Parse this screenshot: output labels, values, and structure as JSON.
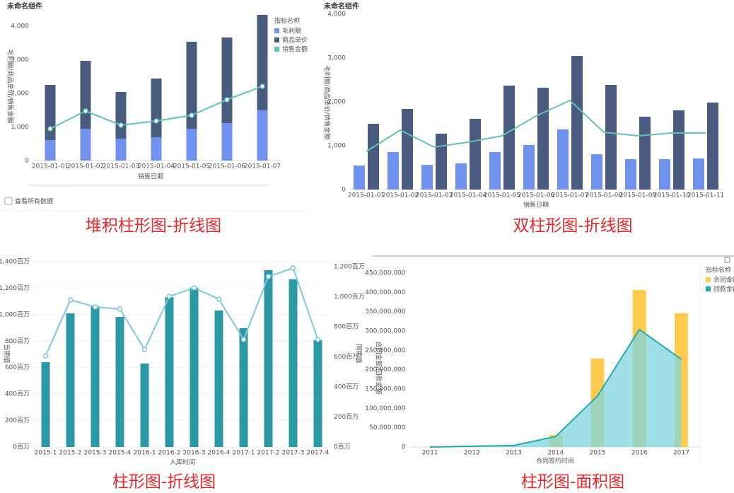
{
  "chart_data": [
    {
      "type": "bar",
      "stacked": true,
      "title": "未命名组件",
      "caption": "堆积柱形图-折线图",
      "checkbox": "查看所有数据",
      "x_label": "销售日期",
      "y_label": "毛利额/商品单价/销售金额",
      "legend": "top-right",
      "legend_title": "指标名称",
      "categories": [
        "2015-01-01",
        "2015-01-02",
        "2015-01-03",
        "2015-01-04",
        "2015-01-05",
        "2015-01-06",
        "2015-01-07"
      ],
      "ylim": [
        0,
        4400
      ],
      "yticks": [
        0,
        {
          "value": 1000,
          "label": "1,000"
        },
        {
          "value": 2000,
          "label": "2,000"
        },
        {
          "value": 3000,
          "label": "3,000"
        },
        {
          "value": 4000,
          "label": "4,000"
        }
      ],
      "grid": false,
      "series": [
        {
          "name": "毛利额",
          "type": "bar",
          "color": "#7091ee",
          "values": [
            610,
            947,
            653,
            695,
            947,
            1116,
            1495
          ]
        },
        {
          "name": "商品单价",
          "type": "bar",
          "color": "#4a5b80",
          "values": [
            1643,
            2021,
            1389,
            1747,
            2590,
            2547,
            2842
          ]
        },
        {
          "name": "销售金额",
          "type": "line",
          "markers": true,
          "color": "#62c2b8",
          "values": [
            947,
            1474,
            1053,
            1179,
            1347,
            1811,
            2211
          ]
        }
      ]
    },
    {
      "type": "bar",
      "stacked": false,
      "title": "未命名组件",
      "caption": "双柱形图-折线图",
      "x_label": "销售日期",
      "y_label": "毛利额/商品单价/销售金额",
      "categories": [
        "2015-01-01",
        "2015-01-02",
        "2015-01-03",
        "2015-01-04",
        "2015-01-05",
        "2015-01-06",
        "2015-01-07",
        "2015-01-08",
        "2015-01-09",
        "2015-01-10",
        "2015-01-11"
      ],
      "ylim": [
        0,
        4000
      ],
      "yticks": [
        0,
        {
          "value": 1000,
          "label": "1,000"
        },
        {
          "value": 2000,
          "label": "2,000"
        },
        {
          "value": 3000,
          "label": "3,000"
        },
        {
          "value": 4000,
          "label": "4,000"
        }
      ],
      "grid": false,
      "series": [
        {
          "type": "bar",
          "color": "#7091ee",
          "values": [
            548,
            855,
            565,
            597,
            855,
            1016,
            1371,
            806,
            694,
            694,
            710
          ]
        },
        {
          "type": "bar",
          "color": "#4a5b80",
          "values": [
            1500,
            1839,
            1274,
            1613,
            2371,
            2323,
            3048,
            2387,
            1661,
            1806,
            1984
          ]
        },
        {
          "type": "line",
          "markers": false,
          "color": "#62c2b8",
          "values": [
            871,
            1355,
            968,
            1081,
            1226,
            1677,
            2032,
            1306,
            1226,
            1290,
            1290
          ]
        }
      ]
    },
    {
      "type": "bar",
      "stacked": false,
      "caption": "柱形图-折线图",
      "x_label": "入库时间",
      "y_label": "当期值",
      "y2_label": "同期值",
      "categories": [
        "2015-1",
        "2015-2",
        "2015-3",
        "2015-4",
        "2016-1",
        "2016-2",
        "2016-3",
        "2016-4",
        "2017-1",
        "2017-2",
        "2017-3",
        "2017-4"
      ],
      "ylim": [
        0,
        1400
      ],
      "yticks": [
        {
          "value": 0,
          "label": "0百万"
        },
        {
          "value": 200,
          "label": "200百万"
        },
        {
          "value": 400,
          "label": "400百万"
        },
        {
          "value": 600,
          "label": "600百万"
        },
        {
          "value": 800,
          "label": "800百万"
        },
        {
          "value": 1000,
          "label": "1,000百万"
        },
        {
          "value": 1200,
          "label": "1,200百万"
        },
        {
          "value": 1400,
          "label": "1,400百万"
        }
      ],
      "y2lim": [
        0,
        1200
      ],
      "y2ticks": [
        {
          "value": 0,
          "label": "0百万"
        },
        {
          "value": 200,
          "label": "200百万"
        },
        {
          "value": 400,
          "label": "400百万"
        },
        {
          "value": 600,
          "label": "600百万"
        },
        {
          "value": 800,
          "label": "800百万"
        },
        {
          "value": 1000,
          "label": "1,000百万"
        },
        {
          "value": 1200,
          "label": "1,200百万"
        }
      ],
      "grid": true,
      "series": [
        {
          "type": "bar",
          "color": "#2a99a3",
          "values": [
            641,
            1010,
            1063,
            983,
            631,
            1133,
            1203,
            1032,
            898,
            1336,
            1267,
            807
          ]
        },
        {
          "type": "line",
          "axis": "y2",
          "markers": true,
          "color": "#7dc8df",
          "values": [
            607,
            979,
            932,
            918,
            649,
            1002,
            1059,
            984,
            715,
            1134,
            1191,
            715
          ]
        }
      ]
    },
    {
      "type": "bar",
      "stacked": false,
      "caption": "柱形图-面积图",
      "x_label": "合同签约时间",
      "y_label": "合同金额/回款金额",
      "legend": "top-right",
      "legend_title": "指标名称",
      "categories": [
        "2011",
        "2012",
        "2013",
        "2014",
        "2015",
        "2016",
        "2017"
      ],
      "ylim": [
        0,
        450000000
      ],
      "yticks": [
        0,
        {
          "value": 50000000,
          "label": "50,000,000"
        },
        {
          "value": 100000000,
          "label": "100,000,000"
        },
        {
          "value": 150000000,
          "label": "150,000,000"
        },
        {
          "value": 200000000,
          "label": "200,000,000"
        },
        {
          "value": 250000000,
          "label": "250,000,000"
        },
        {
          "value": 300000000,
          "label": "300,000,000"
        },
        {
          "value": 350000000,
          "label": "350,000,000"
        },
        {
          "value": 400000000,
          "label": "400,000,000"
        },
        {
          "value": 450000000,
          "label": "450,000,000"
        }
      ],
      "grid": false,
      "series": [
        {
          "name": "合同金额",
          "type": "bar",
          "color": "#ffcb4c",
          "values": [
            0,
            0,
            0,
            31000000,
            229000000,
            406000000,
            346000000
          ]
        },
        {
          "name": "回款金额",
          "type": "area",
          "color": "#25a9ad",
          "fill": "#7fd6e0",
          "values": [
            0,
            2000000,
            4000000,
            27000000,
            132000000,
            304000000,
            227000000
          ]
        }
      ]
    }
  ]
}
